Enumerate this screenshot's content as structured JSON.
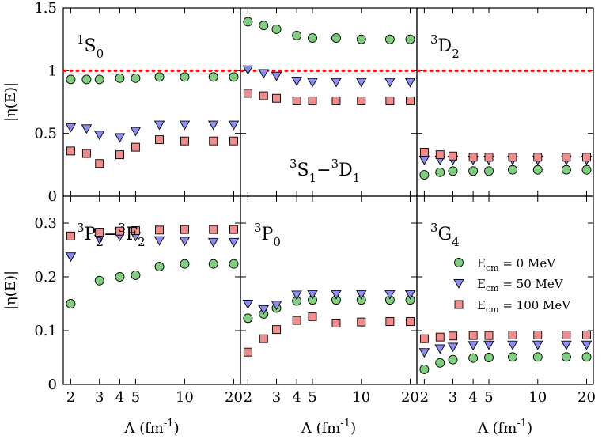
{
  "chart_data": {
    "type": "scatter",
    "x_scale": "log",
    "xlim": [
      1.8,
      22
    ],
    "xticks": [
      2,
      3,
      4,
      5,
      10,
      20
    ],
    "xtick_labels": [
      "2",
      "3",
      "4",
      "5",
      "10",
      "20"
    ],
    "xlabel": {
      "base": "Λ (fm",
      "sup": "-1",
      "close": ")"
    },
    "ylabel": "|η(E)|",
    "rows": [
      {
        "ylim": [
          0,
          1.5
        ],
        "yticks": [
          0,
          0.5,
          1,
          1.5
        ],
        "ytick_labels": [
          "0",
          "0.5",
          "1",
          "1.5"
        ]
      },
      {
        "ylim": [
          0,
          0.35
        ],
        "yticks": [
          0,
          0.1,
          0.2,
          0.3
        ],
        "ytick_labels": [
          "0",
          "0.1",
          "0.2",
          "0.3"
        ]
      }
    ],
    "reference_line": {
      "y": 1,
      "style": "dotted",
      "color": "#ff0000",
      "panels": [
        0,
        1,
        2
      ]
    },
    "series_styles": [
      {
        "name": "E_cm = 0 MeV",
        "marker": "circle",
        "color": "#7fcf7f"
      },
      {
        "name": "E_cm = 50 MeV",
        "marker": "triangle-down",
        "color": "#8c8cf2"
      },
      {
        "name": "E_cm = 100 MeV",
        "marker": "square",
        "color": "#f28c8c"
      }
    ],
    "panels": [
      {
        "row": 0,
        "col": 0,
        "label": {
          "pre": "1",
          "main": "S",
          "sub": "0"
        },
        "label_pos": "top-left",
        "x": [
          2,
          2.5,
          3,
          4,
          5,
          7,
          10,
          15,
          20
        ],
        "series": [
          {
            "name": "E_cm = 0 MeV",
            "values": [
              0.93,
              0.93,
              0.93,
              0.94,
              0.94,
              0.95,
              0.95,
              0.95,
              0.95
            ]
          },
          {
            "name": "E_cm = 50 MeV",
            "values": [
              0.55,
              0.54,
              0.49,
              0.47,
              0.52,
              0.57,
              0.57,
              0.57,
              0.57
            ]
          },
          {
            "name": "E_cm = 100 MeV",
            "values": [
              0.36,
              0.34,
              0.26,
              0.33,
              0.39,
              0.45,
              0.44,
              0.44,
              0.44
            ]
          }
        ]
      },
      {
        "row": 0,
        "col": 1,
        "label": {
          "pre": "3",
          "main": "S",
          "sub": "1",
          "dash": "−",
          "pre2": "3",
          "main2": "D",
          "sub2": "1"
        },
        "label_pos": "middle-right",
        "x": [
          2,
          2.5,
          3,
          4,
          5,
          7,
          10,
          15,
          20
        ],
        "series": [
          {
            "name": "E_cm = 0 MeV",
            "values": [
              1.39,
              1.36,
              1.33,
              1.28,
              1.26,
              1.26,
              1.25,
              1.25,
              1.25
            ]
          },
          {
            "name": "E_cm = 50 MeV",
            "values": [
              1.01,
              0.98,
              0.96,
              0.92,
              0.91,
              0.91,
              0.91,
              0.91,
              0.91
            ]
          },
          {
            "name": "E_cm = 100 MeV",
            "values": [
              0.82,
              0.8,
              0.78,
              0.76,
              0.76,
              0.76,
              0.76,
              0.76,
              0.76
            ]
          }
        ]
      },
      {
        "row": 0,
        "col": 2,
        "label": {
          "pre": "3",
          "main": "D",
          "sub": "2"
        },
        "label_pos": "top-left",
        "x": [
          2,
          2.5,
          3,
          4,
          5,
          7,
          10,
          15,
          20
        ],
        "series": [
          {
            "name": "E_cm = 0 MeV",
            "values": [
              0.17,
              0.19,
              0.2,
              0.2,
              0.2,
              0.21,
              0.21,
              0.21,
              0.21
            ]
          },
          {
            "name": "E_cm = 50 MeV",
            "values": [
              0.29,
              0.29,
              0.29,
              0.29,
              0.29,
              0.29,
              0.29,
              0.29,
              0.29
            ]
          },
          {
            "name": "E_cm = 100 MeV",
            "values": [
              0.35,
              0.33,
              0.32,
              0.31,
              0.31,
              0.31,
              0.31,
              0.31,
              0.31
            ]
          }
        ]
      },
      {
        "row": 1,
        "col": 0,
        "label": {
          "pre": "3",
          "main": "P",
          "sub": "2",
          "dash": "−",
          "pre2": "3",
          "main2": "F",
          "sub2": "2"
        },
        "label_pos": "top-left",
        "x": [
          2,
          3,
          4,
          5,
          7,
          10,
          15,
          20
        ],
        "series": [
          {
            "name": "E_cm = 0 MeV",
            "values": [
              0.15,
              0.193,
              0.2,
              0.203,
              0.219,
              0.224,
              0.224,
              0.224
            ]
          },
          {
            "name": "E_cm = 50 MeV",
            "values": [
              0.238,
              0.271,
              0.276,
              0.276,
              0.268,
              0.267,
              0.265,
              0.265
            ]
          },
          {
            "name": "E_cm = 100 MeV",
            "values": [
              0.276,
              0.283,
              0.285,
              0.286,
              0.287,
              0.288,
              0.288,
              0.288
            ]
          }
        ]
      },
      {
        "row": 1,
        "col": 1,
        "label": {
          "pre": "3",
          "main": "P",
          "sub": "0"
        },
        "label_pos": "top-left",
        "x": [
          2,
          2.5,
          3,
          4,
          5,
          7,
          10,
          15,
          20
        ],
        "series": [
          {
            "name": "E_cm = 0 MeV",
            "values": [
              0.123,
              0.131,
              0.142,
              0.155,
              0.157,
              0.157,
              0.157,
              0.157,
              0.157
            ]
          },
          {
            "name": "E_cm = 50 MeV",
            "values": [
              0.15,
              0.14,
              0.148,
              0.167,
              0.168,
              0.168,
              0.168,
              0.168,
              0.168
            ]
          },
          {
            "name": "E_cm = 100 MeV",
            "values": [
              0.06,
              0.085,
              0.102,
              0.119,
              0.126,
              0.114,
              0.116,
              0.117,
              0.117
            ]
          }
        ]
      },
      {
        "row": 1,
        "col": 2,
        "label": {
          "pre": "3",
          "main": "G",
          "sub": "4"
        },
        "label_pos": "top-left",
        "x": [
          2,
          2.5,
          3,
          4,
          5,
          7,
          10,
          15,
          20
        ],
        "series": [
          {
            "name": "E_cm = 0 MeV",
            "values": [
              0.028,
              0.04,
              0.046,
              0.049,
              0.05,
              0.051,
              0.051,
              0.051,
              0.051
            ]
          },
          {
            "name": "E_cm = 50 MeV",
            "values": [
              0.06,
              0.067,
              0.07,
              0.073,
              0.074,
              0.074,
              0.074,
              0.074,
              0.074
            ]
          },
          {
            "name": "E_cm = 100 MeV",
            "values": [
              0.085,
              0.088,
              0.09,
              0.091,
              0.091,
              0.092,
              0.092,
              0.092,
              0.092
            ]
          }
        ]
      }
    ],
    "legend": {
      "panel": 5,
      "placement": "center-right",
      "entries": [
        {
          "main": "E",
          "sub": "cm",
          "rest": " = 0 MeV"
        },
        {
          "main": "E",
          "sub": "cm",
          "rest": " = 50 MeV"
        },
        {
          "main": "E",
          "sub": "cm",
          "rest": " = 100 MeV"
        }
      ]
    }
  }
}
